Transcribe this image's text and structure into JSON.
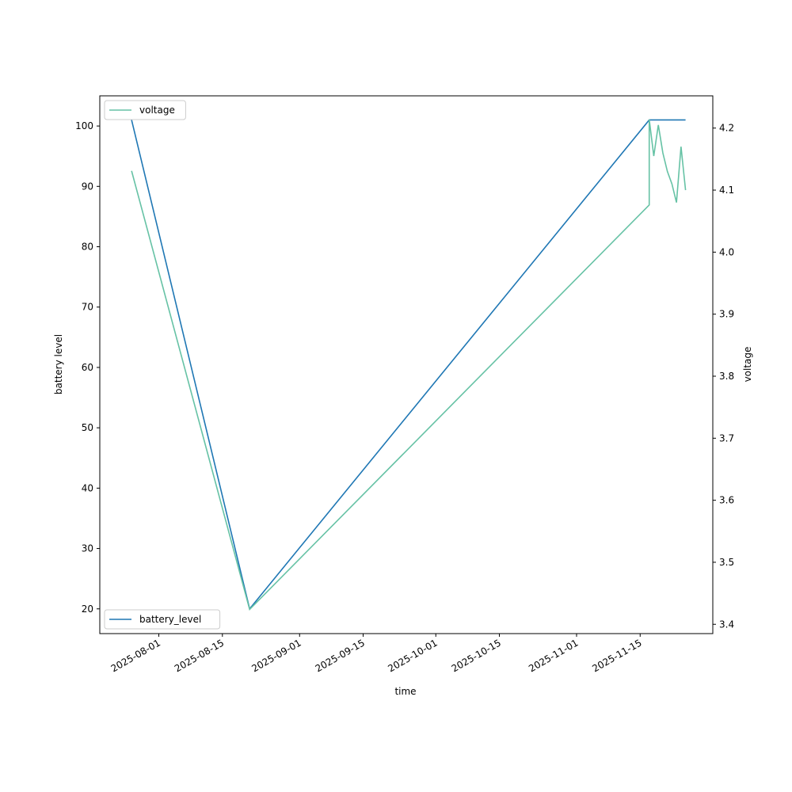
{
  "chart_data": {
    "type": "line",
    "xlabel": "time",
    "ylabel": "battery level",
    "y2label": "voltage",
    "xlim": [
      "2025-07-19",
      "2025-12-01"
    ],
    "xticks": [
      "2025-08-01",
      "2025-08-15",
      "2025-09-01",
      "2025-09-15",
      "2025-10-01",
      "2025-10-15",
      "2025-11-01",
      "2025-11-15"
    ],
    "ylim": [
      15.9,
      105
    ],
    "yticks": [
      20,
      30,
      40,
      50,
      60,
      70,
      80,
      90,
      100
    ],
    "y2lim": [
      3.385,
      4.252
    ],
    "y2ticks": [
      3.4,
      3.5,
      3.6,
      3.7,
      3.8,
      3.9,
      {
        "value": 4,
        "label": "4.0"
      },
      4.1,
      4.2
    ],
    "series": [
      {
        "name": "battery_level",
        "color": "#1f77b4",
        "legend": "lower left",
        "x": [
          "2025-07-26",
          "2025-08-21",
          "2025-11-17",
          "2025-11-25"
        ],
        "values": [
          101,
          20,
          101,
          101
        ]
      },
      {
        "name": "voltage",
        "color": "#66c2a5",
        "axis": "y2",
        "legend": "upper left",
        "x": [
          "2025-07-26",
          "2025-08-21",
          "2025-11-17",
          "2025-11-17",
          "2025-11-18",
          "2025-11-19",
          "2025-11-20",
          "2025-11-21",
          "2025-11-22",
          "2025-11-23",
          "2025-11-24",
          "2025-11-25"
        ],
        "values": [
          4.131,
          3.424,
          4.076,
          4.214,
          4.155,
          4.205,
          4.16,
          4.13,
          4.11,
          4.08,
          4.17,
          4.1
        ]
      }
    ]
  }
}
